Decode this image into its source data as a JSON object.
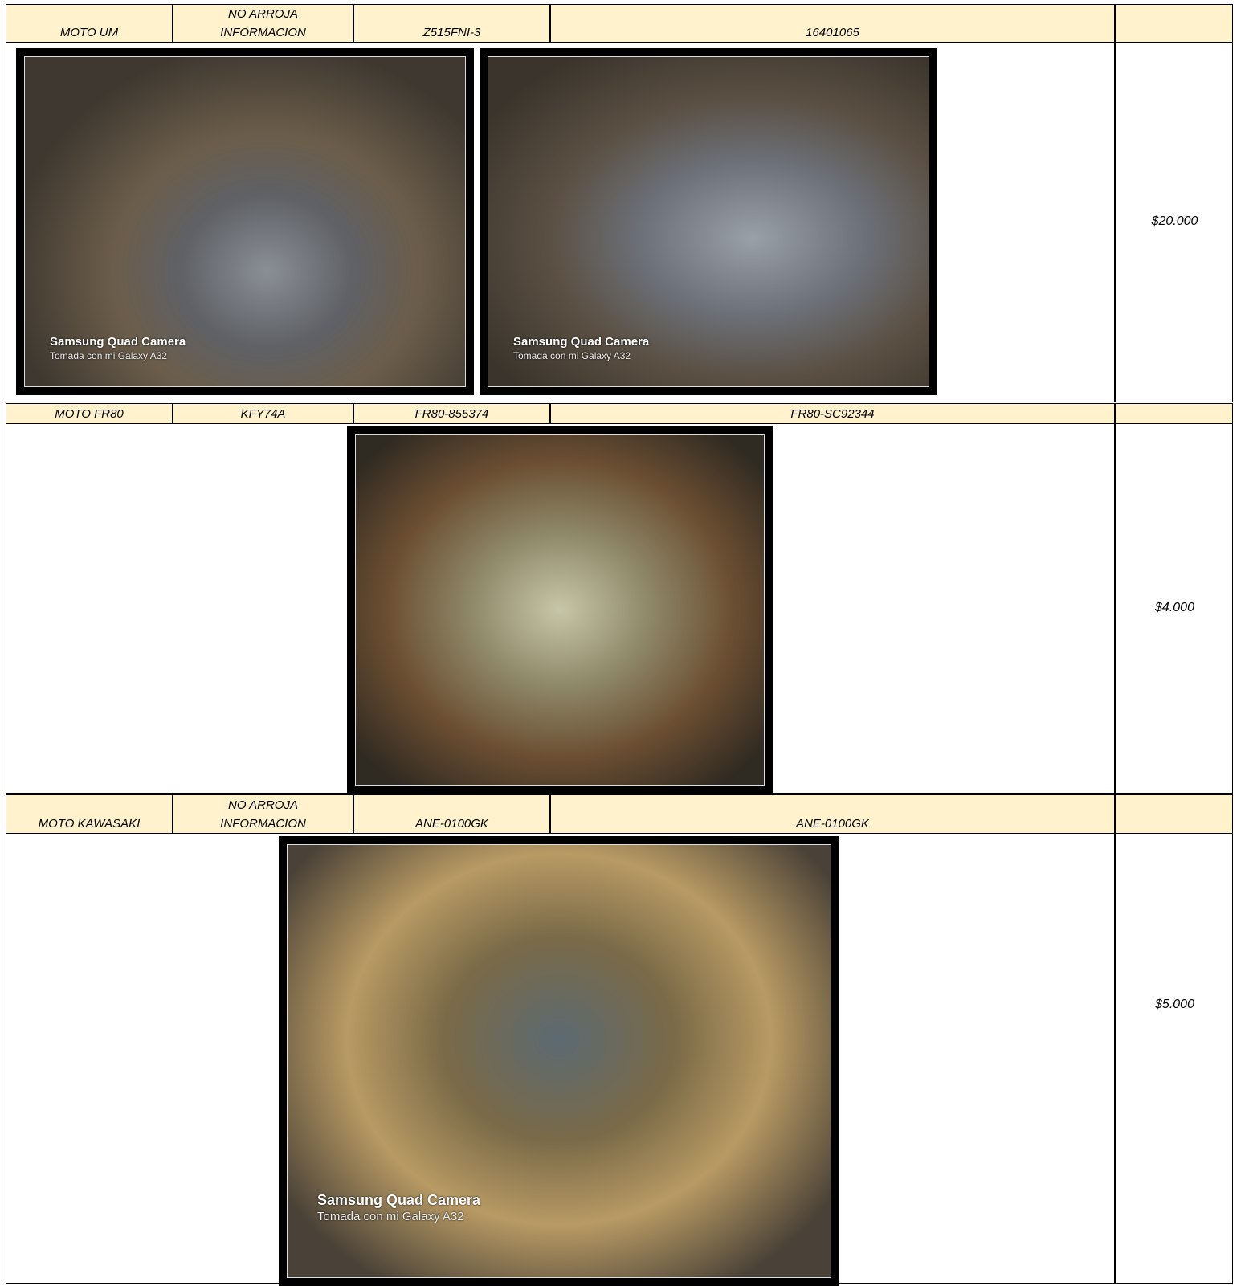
{
  "rows": [
    {
      "cells": [
        "MOTO UM",
        "NO ARROJA\nINFORMACION",
        "Z515FNI-3",
        "16401065"
      ],
      "price": "$20.000",
      "photos": [
        {
          "watermark": [
            "Samsung Quad Camera",
            "Tomada con mi Galaxy A32"
          ]
        },
        {
          "watermark": [
            "Samsung Quad Camera",
            "Tomada con mi Galaxy A32"
          ]
        }
      ]
    },
    {
      "cells": [
        "MOTO FR80",
        "KFY74A",
        "FR80-855374",
        "FR80-SC92344"
      ],
      "price": "$4.000",
      "photos": [
        {}
      ]
    },
    {
      "cells": [
        "MOTO KAWASAKI",
        "NO ARROJA\nINFORMACION",
        "ANE-0100GK",
        "ANE-0100GK"
      ],
      "price": "$5.000",
      "photos": [
        {
          "watermark": [
            "Samsung Quad Camera",
            "Tomada con mi Galaxy A32"
          ]
        }
      ]
    }
  ]
}
